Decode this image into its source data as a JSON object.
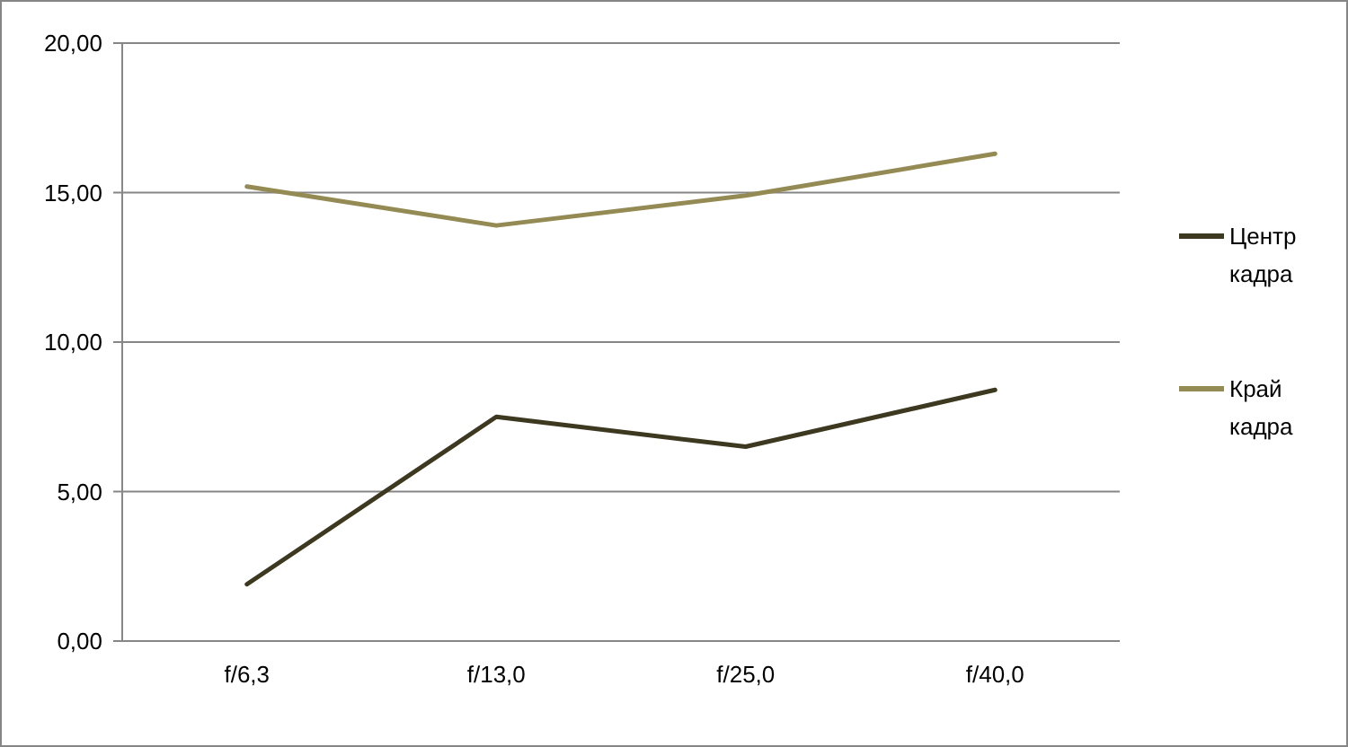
{
  "chart_data": {
    "type": "line",
    "categories": [
      "f/6,3",
      "f/13,0",
      "f/25,0",
      "f/40,0"
    ],
    "series": [
      {
        "name": "Центр кадра",
        "color": "#3d3820",
        "values": [
          1.9,
          7.5,
          6.5,
          8.4
        ]
      },
      {
        "name": "Край кадра",
        "color": "#948a54",
        "values": [
          15.2,
          13.9,
          14.9,
          16.3
        ]
      }
    ],
    "ylim": [
      0,
      20
    ],
    "yticks": [
      {
        "value": 0,
        "label": "0,00"
      },
      {
        "value": 5,
        "label": "5,00"
      },
      {
        "value": 10,
        "label": "10,00"
      },
      {
        "value": 15,
        "label": "15,00"
      },
      {
        "value": 20,
        "label": "20,00"
      }
    ],
    "grid": "y",
    "legend": "right",
    "marker": "none"
  }
}
